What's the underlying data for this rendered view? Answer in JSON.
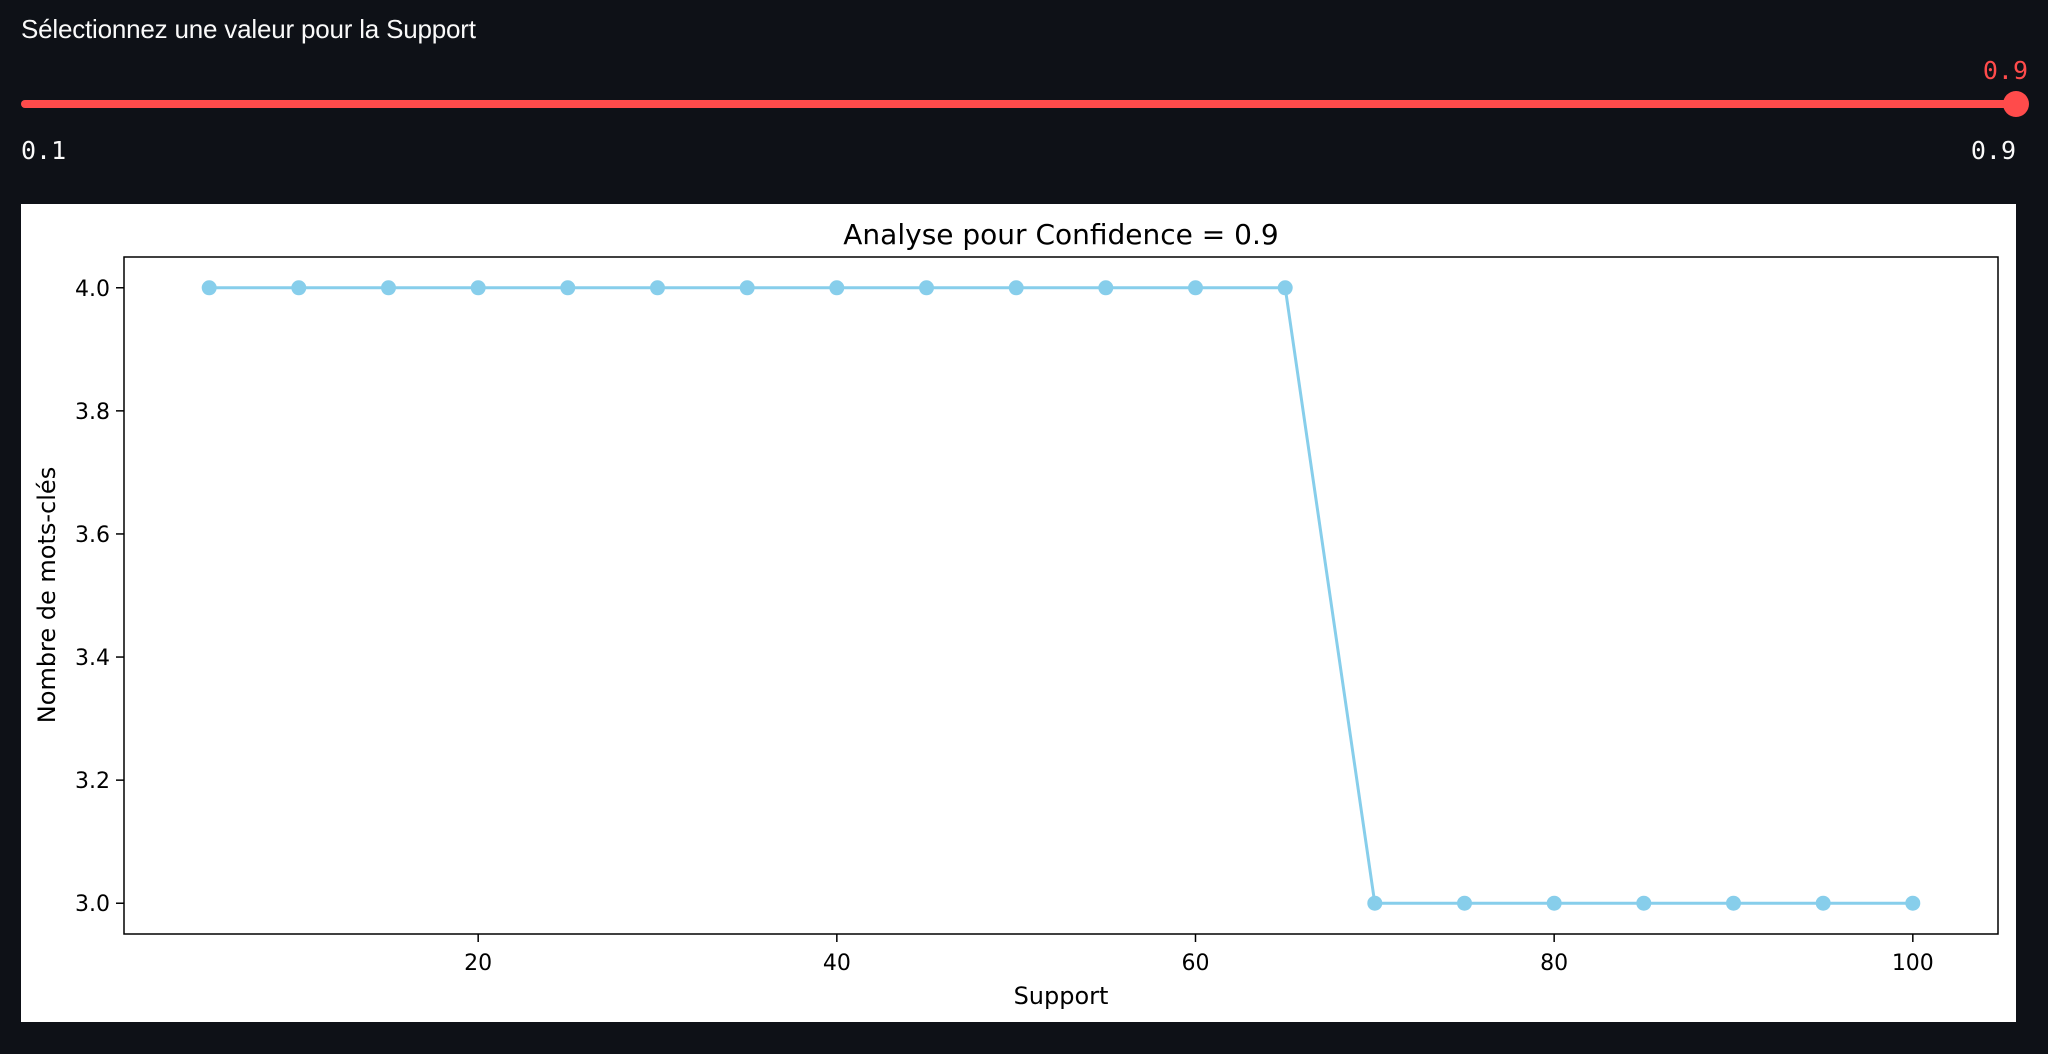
{
  "slider": {
    "label": "Sélectionnez une valeur pour la Support",
    "value": 0.9,
    "value_text": "0.9",
    "min": 0.1,
    "min_text": "0.1",
    "max": 0.9,
    "max_text": "0.9",
    "color": "#ff4b4b"
  },
  "chart_data": {
    "type": "line",
    "title": "Analyse pour Confidence = 0.9",
    "xlabel": "Support",
    "ylabel": "Nombre de mots-clés",
    "x": [
      5,
      10,
      15,
      20,
      25,
      30,
      35,
      40,
      45,
      50,
      55,
      60,
      65,
      70,
      75,
      80,
      85,
      90,
      95,
      100
    ],
    "y": [
      4,
      4,
      4,
      4,
      4,
      4,
      4,
      4,
      4,
      4,
      4,
      4,
      4,
      3,
      3,
      3,
      3,
      3,
      3,
      3
    ],
    "xlim": [
      0.25,
      104.75
    ],
    "ylim": [
      2.95,
      4.05
    ],
    "xticks": [
      20,
      40,
      60,
      80,
      100
    ],
    "xtick_labels": [
      "20",
      "40",
      "60",
      "80",
      "100"
    ],
    "yticks": [
      3.0,
      3.2,
      3.4,
      3.6,
      3.8,
      4.0
    ],
    "ytick_labels": [
      "3.0",
      "3.2",
      "3.4",
      "3.6",
      "3.8",
      "4.0"
    ],
    "line_color": "#87ceeb",
    "marker": "circle",
    "grid": false,
    "legend": "none"
  }
}
